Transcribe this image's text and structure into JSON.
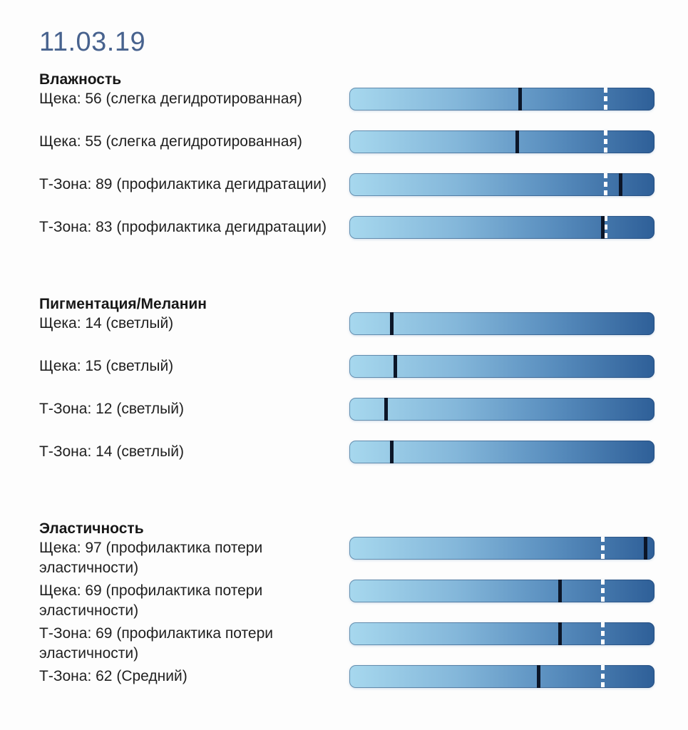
{
  "chart_data": {
    "type": "bar",
    "orientation": "horizontal",
    "title": "11.03.19",
    "xlim": [
      0,
      100
    ],
    "marker_legend": {
      "value_marker": "solid dark vertical line (measured value)",
      "reference_marker": "white dashed vertical line (reference threshold)"
    },
    "sections": [
      {
        "title": "Влажность",
        "rows": [
          {
            "label": "Щека: 56 (слегка дегидротированная)",
            "zone": "Щека",
            "value": 56,
            "status": "слегка дегидротированная",
            "reference": 84
          },
          {
            "label": "Щека: 55 (слегка дегидротированная)",
            "zone": "Щека",
            "value": 55,
            "status": "слегка дегидротированная",
            "reference": 84
          },
          {
            "label": "Т-Зона: 89 (профилактика дегидратации)",
            "zone": "Т-Зона",
            "value": 89,
            "status": "профилактика дегидратации",
            "reference": 84
          },
          {
            "label": "Т-Зона: 83 (профилактика дегидратации)",
            "zone": "Т-Зона",
            "value": 83,
            "status": "профилактика дегидратации",
            "reference": 84
          }
        ]
      },
      {
        "title": "Пигментация/Меланин",
        "rows": [
          {
            "label": "Щека: 14 (светлый)",
            "zone": "Щека",
            "value": 14,
            "status": "светлый",
            "reference": null
          },
          {
            "label": "Щека: 15 (светлый)",
            "zone": "Щека",
            "value": 15,
            "status": "светлый",
            "reference": null
          },
          {
            "label": "Т-Зона: 12 (светлый)",
            "zone": "Т-Зона",
            "value": 12,
            "status": "светлый",
            "reference": null
          },
          {
            "label": "Т-Зона: 14 (светлый)",
            "zone": "Т-Зона",
            "value": 14,
            "status": "светлый",
            "reference": null
          }
        ]
      },
      {
        "title": "Эластичность",
        "rows": [
          {
            "label": "Щека: 97 (профилактика потери эластичности)",
            "zone": "Щека",
            "value": 97,
            "status": "профилактика потери эластичности",
            "reference": 83
          },
          {
            "label": "Щека: 69 (профилактика потери эластичности)",
            "zone": "Щека",
            "value": 69,
            "status": "профилактика потери эластичности",
            "reference": 83
          },
          {
            "label": "Т-Зона: 69 (профилактика потери эластичности)",
            "zone": "Т-Зона",
            "value": 69,
            "status": "профилактика потери эластичности",
            "reference": 83
          },
          {
            "label": "Т-Зона: 62 (Средний)",
            "zone": "Т-Зона",
            "value": 62,
            "status": "Средний",
            "reference": 83
          }
        ]
      }
    ],
    "colors": {
      "bar_gradient_start": "#a7d8ee",
      "bar_gradient_end": "#2e5f98",
      "value_marker": "#0c1628",
      "reference_marker": "#ffffff",
      "date_text": "#47628e",
      "body_text": "#1b1b1b",
      "background": "#fdfdfd"
    }
  }
}
